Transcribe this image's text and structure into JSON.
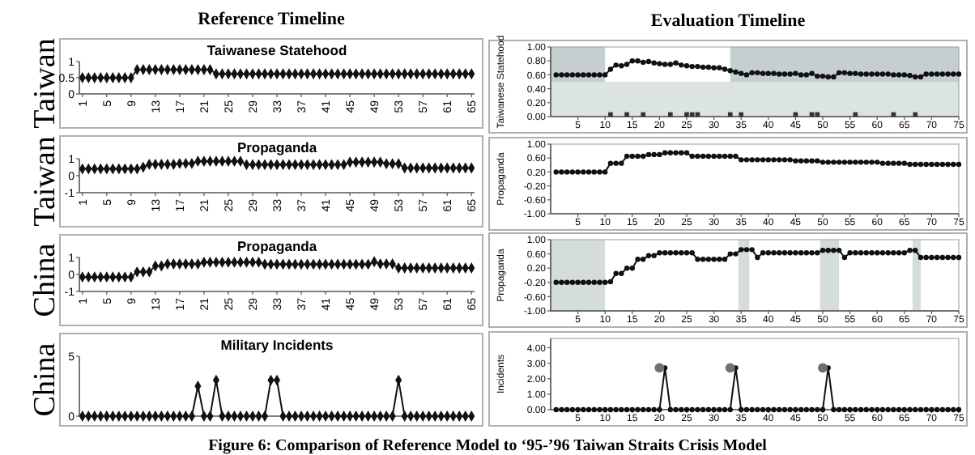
{
  "chart_data": [
    {
      "type": "line",
      "title": "Taiwanese Statehood",
      "ylabel": "Taiwan",
      "annotations": [
        "Reference Timeline"
      ],
      "marker": "diamond",
      "xlim": [
        0.5,
        65.5
      ],
      "xticks": [
        1,
        5,
        9,
        13,
        17,
        21,
        25,
        29,
        33,
        37,
        41,
        45,
        49,
        53,
        57,
        61,
        65
      ],
      "ylim": [
        0,
        1
      ],
      "yticks": [
        0,
        0.5,
        1
      ],
      "x": [
        1,
        2,
        3,
        4,
        5,
        6,
        7,
        8,
        9,
        10,
        11,
        12,
        13,
        14,
        15,
        16,
        17,
        18,
        19,
        20,
        21,
        22,
        23,
        24,
        25,
        26,
        27,
        28,
        29,
        30,
        31,
        32,
        33,
        34,
        35,
        36,
        37,
        38,
        39,
        40,
        41,
        42,
        43,
        44,
        45,
        46,
        47,
        48,
        49,
        50,
        51,
        52,
        53,
        54,
        55,
        56,
        57,
        58,
        59,
        60,
        61,
        62,
        63,
        64,
        65
      ],
      "series": [
        {
          "color": "#111111",
          "values": [
            0.5,
            0.5,
            0.5,
            0.5,
            0.5,
            0.5,
            0.5,
            0.5,
            0.5,
            0.75,
            0.75,
            0.75,
            0.75,
            0.75,
            0.75,
            0.75,
            0.75,
            0.75,
            0.75,
            0.75,
            0.75,
            0.75,
            0.62,
            0.62,
            0.62,
            0.62,
            0.62,
            0.62,
            0.62,
            0.62,
            0.62,
            0.62,
            0.62,
            0.62,
            0.62,
            0.62,
            0.62,
            0.62,
            0.62,
            0.62,
            0.62,
            0.62,
            0.62,
            0.62,
            0.62,
            0.62,
            0.62,
            0.62,
            0.62,
            0.62,
            0.62,
            0.62,
            0.62,
            0.62,
            0.62,
            0.62,
            0.62,
            0.62,
            0.62,
            0.62,
            0.62,
            0.62,
            0.62,
            0.62,
            0.62
          ]
        }
      ]
    },
    {
      "type": "line",
      "ylabel": "Taiwanese Statehood",
      "annotations": [
        "Evaluation Timeline"
      ],
      "marker": "circle",
      "xlim": [
        0,
        75
      ],
      "xticks": [
        5,
        10,
        15,
        20,
        25,
        30,
        35,
        40,
        45,
        50,
        55,
        60,
        65,
        70,
        75
      ],
      "ylim": [
        0,
        1
      ],
      "yticks": [
        {
          "value": 0,
          "label": "0.00"
        },
        {
          "value": 0.2,
          "label": "0.20"
        },
        {
          "value": 0.4,
          "label": "0.40"
        },
        {
          "value": 0.6,
          "label": "0.60"
        },
        {
          "value": 0.8,
          "label": "0.80"
        },
        {
          "value": 1,
          "label": "1.00"
        }
      ],
      "bands": [
        {
          "axis": "x",
          "from": 0,
          "to": 10,
          "color": "#c5cfcf"
        },
        {
          "axis": "x",
          "from": 33,
          "to": 75,
          "color": "#c5cfcf"
        },
        {
          "axis": "y",
          "from": 0,
          "to": 0.5,
          "color": "#dbe3e3"
        }
      ],
      "x": [
        1,
        2,
        3,
        4,
        5,
        6,
        7,
        8,
        9,
        10,
        11,
        12,
        13,
        14,
        15,
        16,
        17,
        18,
        19,
        20,
        21,
        22,
        23,
        24,
        25,
        26,
        27,
        28,
        29,
        30,
        31,
        32,
        33,
        34,
        35,
        36,
        37,
        38,
        39,
        40,
        41,
        42,
        43,
        44,
        45,
        46,
        47,
        48,
        49,
        50,
        51,
        52,
        53,
        54,
        55,
        56,
        57,
        58,
        59,
        60,
        61,
        62,
        63,
        64,
        65,
        66,
        67,
        68,
        69,
        70,
        71,
        72,
        73,
        74,
        75
      ],
      "series": [
        {
          "color": "#111111",
          "values": [
            0.6,
            0.6,
            0.6,
            0.6,
            0.6,
            0.6,
            0.6,
            0.6,
            0.6,
            0.6,
            0.68,
            0.74,
            0.73,
            0.75,
            0.8,
            0.8,
            0.78,
            0.79,
            0.77,
            0.76,
            0.75,
            0.75,
            0.77,
            0.74,
            0.73,
            0.72,
            0.72,
            0.71,
            0.71,
            0.7,
            0.7,
            0.68,
            0.66,
            0.64,
            0.62,
            0.6,
            0.63,
            0.63,
            0.62,
            0.62,
            0.62,
            0.61,
            0.61,
            0.61,
            0.62,
            0.6,
            0.6,
            0.62,
            0.58,
            0.58,
            0.57,
            0.57,
            0.63,
            0.63,
            0.62,
            0.62,
            0.61,
            0.61,
            0.61,
            0.61,
            0.61,
            0.61,
            0.6,
            0.6,
            0.6,
            0.59,
            0.57,
            0.57,
            0.61,
            0.61,
            0.61,
            0.61,
            0.61,
            0.61,
            0.61
          ]
        },
        {
          "type": "scatter",
          "marker": "square",
          "color": "#333333",
          "x": [
            11,
            14,
            17,
            22,
            25,
            26,
            27,
            33,
            35,
            45,
            48,
            49,
            56,
            63,
            67
          ],
          "values": [
            0.03,
            0.03,
            0.03,
            0.03,
            0.03,
            0.03,
            0.03,
            0.03,
            0.03,
            0.03,
            0.03,
            0.03,
            0.03,
            0.03,
            0.03
          ]
        }
      ]
    },
    {
      "type": "line",
      "title": "Propaganda",
      "ylabel": "Taiwan",
      "marker": "diamond",
      "xlim": [
        0.5,
        65.5
      ],
      "xticks": [
        1,
        5,
        9,
        13,
        17,
        21,
        25,
        29,
        33,
        37,
        41,
        45,
        49,
        53,
        57,
        61,
        65
      ],
      "ylim": [
        -1,
        1
      ],
      "yticks": [
        -1,
        0,
        1
      ],
      "x": [
        1,
        2,
        3,
        4,
        5,
        6,
        7,
        8,
        9,
        10,
        11,
        12,
        13,
        14,
        15,
        16,
        17,
        18,
        19,
        20,
        21,
        22,
        23,
        24,
        25,
        26,
        27,
        28,
        29,
        30,
        31,
        32,
        33,
        34,
        35,
        36,
        37,
        38,
        39,
        40,
        41,
        42,
        43,
        44,
        45,
        46,
        47,
        48,
        49,
        50,
        51,
        52,
        53,
        54,
        55,
        56,
        57,
        58,
        59,
        60,
        61,
        62,
        63,
        64,
        65
      ],
      "series": [
        {
          "color": "#111111",
          "values": [
            0.4,
            0.4,
            0.4,
            0.4,
            0.4,
            0.4,
            0.4,
            0.4,
            0.4,
            0.4,
            0.5,
            0.67,
            0.67,
            0.67,
            0.67,
            0.67,
            0.72,
            0.72,
            0.72,
            0.85,
            0.85,
            0.85,
            0.85,
            0.85,
            0.85,
            0.85,
            0.85,
            0.65,
            0.65,
            0.65,
            0.65,
            0.65,
            0.65,
            0.65,
            0.65,
            0.65,
            0.65,
            0.65,
            0.65,
            0.65,
            0.65,
            0.65,
            0.65,
            0.65,
            0.8,
            0.8,
            0.8,
            0.8,
            0.8,
            0.8,
            0.7,
            0.7,
            0.7,
            0.45,
            0.45,
            0.45,
            0.45,
            0.45,
            0.45,
            0.45,
            0.45,
            0.45,
            0.45,
            0.45,
            0.45
          ]
        }
      ]
    },
    {
      "type": "line",
      "ylabel": "Propaganda",
      "marker": "circle",
      "xlim": [
        0,
        75
      ],
      "xticks": [
        5,
        10,
        15,
        20,
        25,
        30,
        35,
        40,
        45,
        50,
        55,
        60,
        65,
        70,
        75
      ],
      "ylim": [
        -1,
        1
      ],
      "yticks": [
        {
          "value": -1,
          "label": "-1.00"
        },
        {
          "value": -0.6,
          "label": "-0.60"
        },
        {
          "value": -0.2,
          "label": "-0.20"
        },
        {
          "value": 0.2,
          "label": "0.20"
        },
        {
          "value": 0.6,
          "label": "0.60"
        },
        {
          "value": 1,
          "label": "1.00"
        }
      ],
      "x": [
        1,
        2,
        3,
        4,
        5,
        6,
        7,
        8,
        9,
        10,
        11,
        12,
        13,
        14,
        15,
        16,
        17,
        18,
        19,
        20,
        21,
        22,
        23,
        24,
        25,
        26,
        27,
        28,
        29,
        30,
        31,
        32,
        33,
        34,
        35,
        36,
        37,
        38,
        39,
        40,
        41,
        42,
        43,
        44,
        45,
        46,
        47,
        48,
        49,
        50,
        51,
        52,
        53,
        54,
        55,
        56,
        57,
        58,
        59,
        60,
        61,
        62,
        63,
        64,
        65,
        66,
        67,
        68,
        69,
        70,
        71,
        72,
        73,
        74,
        75
      ],
      "series": [
        {
          "color": "#111111",
          "values": [
            0.2,
            0.2,
            0.2,
            0.2,
            0.2,
            0.2,
            0.2,
            0.2,
            0.2,
            0.2,
            0.45,
            0.45,
            0.45,
            0.65,
            0.65,
            0.65,
            0.65,
            0.7,
            0.7,
            0.7,
            0.75,
            0.75,
            0.75,
            0.75,
            0.75,
            0.65,
            0.65,
            0.65,
            0.65,
            0.65,
            0.65,
            0.65,
            0.65,
            0.65,
            0.55,
            0.55,
            0.55,
            0.55,
            0.55,
            0.55,
            0.55,
            0.55,
            0.55,
            0.55,
            0.52,
            0.52,
            0.52,
            0.52,
            0.52,
            0.48,
            0.48,
            0.48,
            0.48,
            0.48,
            0.48,
            0.48,
            0.48,
            0.48,
            0.48,
            0.48,
            0.45,
            0.45,
            0.45,
            0.45,
            0.45,
            0.42,
            0.42,
            0.42,
            0.42,
            0.42,
            0.42,
            0.42,
            0.42,
            0.42,
            0.42
          ]
        }
      ]
    },
    {
      "type": "line",
      "title": "Propaganda",
      "ylabel": "China",
      "marker": "diamond",
      "xlim": [
        0.5,
        65.5
      ],
      "xticks": [
        1,
        5,
        9,
        13,
        17,
        21,
        25,
        29,
        33,
        37,
        41,
        45,
        49,
        53,
        57,
        61,
        65
      ],
      "ylim": [
        -1,
        1
      ],
      "yticks": [
        -1,
        0,
        1
      ],
      "x": [
        1,
        2,
        3,
        4,
        5,
        6,
        7,
        8,
        9,
        10,
        11,
        12,
        13,
        14,
        15,
        16,
        17,
        18,
        19,
        20,
        21,
        22,
        23,
        24,
        25,
        26,
        27,
        28,
        29,
        30,
        31,
        32,
        33,
        34,
        35,
        36,
        37,
        38,
        39,
        40,
        41,
        42,
        43,
        44,
        45,
        46,
        47,
        48,
        49,
        50,
        51,
        52,
        53,
        54,
        55,
        56,
        57,
        58,
        59,
        60,
        61,
        62,
        63,
        64,
        65
      ],
      "series": [
        {
          "color": "#111111",
          "values": [
            -0.15,
            -0.15,
            -0.15,
            -0.15,
            -0.15,
            -0.15,
            -0.15,
            -0.15,
            -0.15,
            0.15,
            0.15,
            0.15,
            0.5,
            0.5,
            0.62,
            0.62,
            0.62,
            0.62,
            0.62,
            0.62,
            0.72,
            0.72,
            0.72,
            0.72,
            0.72,
            0.72,
            0.72,
            0.72,
            0.72,
            0.72,
            0.6,
            0.6,
            0.6,
            0.6,
            0.6,
            0.6,
            0.6,
            0.6,
            0.6,
            0.6,
            0.6,
            0.6,
            0.6,
            0.6,
            0.6,
            0.6,
            0.6,
            0.6,
            0.75,
            0.62,
            0.62,
            0.62,
            0.38,
            0.38,
            0.38,
            0.38,
            0.38,
            0.38,
            0.38,
            0.38,
            0.38,
            0.38,
            0.38,
            0.38,
            0.38
          ]
        }
      ]
    },
    {
      "type": "line",
      "ylabel": "Propaganda",
      "marker": "circle",
      "xlim": [
        0,
        75
      ],
      "xticks": [
        5,
        10,
        15,
        20,
        25,
        30,
        35,
        40,
        45,
        50,
        55,
        60,
        65,
        70,
        75
      ],
      "ylim": [
        -1,
        1
      ],
      "yticks": [
        {
          "value": -1,
          "label": "-1.00"
        },
        {
          "value": -0.6,
          "label": "-0.60"
        },
        {
          "value": -0.2,
          "label": "-0.20"
        },
        {
          "value": 0.2,
          "label": "0.20"
        },
        {
          "value": 0.6,
          "label": "0.60"
        },
        {
          "value": 1,
          "label": "1.00"
        }
      ],
      "bands": [
        {
          "axis": "x",
          "from": 0,
          "to": 10,
          "color": "#d5dcdc"
        },
        {
          "axis": "x",
          "from": 34.5,
          "to": 36.5,
          "color": "#d5dcdc"
        },
        {
          "axis": "x",
          "from": 49.5,
          "to": 53,
          "color": "#d5dcdc"
        },
        {
          "axis": "x",
          "from": 66.5,
          "to": 68,
          "color": "#d5dcdc"
        }
      ],
      "x": [
        1,
        2,
        3,
        4,
        5,
        6,
        7,
        8,
        9,
        10,
        11,
        12,
        13,
        14,
        15,
        16,
        17,
        18,
        19,
        20,
        21,
        22,
        23,
        24,
        25,
        26,
        27,
        28,
        29,
        30,
        31,
        32,
        33,
        34,
        35,
        36,
        37,
        38,
        39,
        40,
        41,
        42,
        43,
        44,
        45,
        46,
        47,
        48,
        49,
        50,
        51,
        52,
        53,
        54,
        55,
        56,
        57,
        58,
        59,
        60,
        61,
        62,
        63,
        64,
        65,
        66,
        67,
        68,
        69,
        70,
        71,
        72,
        73,
        74,
        75
      ],
      "series": [
        {
          "color": "#111111",
          "values": [
            -0.2,
            -0.2,
            -0.2,
            -0.2,
            -0.2,
            -0.2,
            -0.2,
            -0.2,
            -0.2,
            -0.2,
            -0.18,
            0.05,
            0.05,
            0.2,
            0.2,
            0.45,
            0.45,
            0.55,
            0.55,
            0.63,
            0.63,
            0.63,
            0.63,
            0.63,
            0.63,
            0.63,
            0.45,
            0.45,
            0.45,
            0.45,
            0.45,
            0.45,
            0.6,
            0.6,
            0.72,
            0.72,
            0.72,
            0.5,
            0.63,
            0.63,
            0.63,
            0.63,
            0.63,
            0.63,
            0.63,
            0.63,
            0.63,
            0.63,
            0.63,
            0.7,
            0.7,
            0.7,
            0.7,
            0.5,
            0.63,
            0.63,
            0.63,
            0.63,
            0.63,
            0.63,
            0.63,
            0.63,
            0.63,
            0.63,
            0.63,
            0.7,
            0.7,
            0.5,
            0.5,
            0.5,
            0.5,
            0.5,
            0.5,
            0.5,
            0.5
          ]
        }
      ]
    },
    {
      "type": "line",
      "title": "Military Incidents",
      "ylabel": "China",
      "marker": "diamond",
      "tick_labels": "y",
      "xlim": [
        0.5,
        65.5
      ],
      "ylim": [
        0,
        5
      ],
      "yticks": [
        0,
        5
      ],
      "x": [
        1,
        2,
        3,
        4,
        5,
        6,
        7,
        8,
        9,
        10,
        11,
        12,
        13,
        14,
        15,
        16,
        17,
        18,
        19,
        20,
        21,
        22,
        23,
        24,
        25,
        26,
        27,
        28,
        29,
        30,
        31,
        32,
        33,
        34,
        35,
        36,
        37,
        38,
        39,
        40,
        41,
        42,
        43,
        44,
        45,
        46,
        47,
        48,
        49,
        50,
        51,
        52,
        53,
        54,
        55,
        56,
        57,
        58,
        59,
        60,
        61,
        62,
        63,
        64,
        65
      ],
      "series": [
        {
          "color": "#111111",
          "values": [
            0,
            0,
            0,
            0,
            0,
            0,
            0,
            0,
            0,
            0,
            0,
            0,
            0,
            0,
            0,
            0,
            0,
            0,
            0,
            2.5,
            0,
            0,
            3,
            0,
            0,
            0,
            0,
            0,
            0,
            0,
            0,
            3,
            3,
            0,
            0,
            0,
            0,
            0,
            0,
            0,
            0,
            0,
            0,
            0,
            0,
            0,
            0,
            0,
            0,
            0,
            0,
            0,
            3,
            0,
            0,
            0,
            0,
            0,
            0,
            0,
            0,
            0,
            0,
            0,
            0
          ]
        }
      ]
    },
    {
      "type": "line",
      "ylabel": "Incidents",
      "annotations": [
        "Figure 6: Comparison of Reference Model to ‘95-’96 Taiwan Straits Crisis Model"
      ],
      "marker": "circle",
      "xlim": [
        0,
        75
      ],
      "xticks": [
        5,
        10,
        15,
        20,
        25,
        30,
        35,
        40,
        45,
        50,
        55,
        60,
        65,
        70,
        75
      ],
      "ylim": [
        0,
        4.6
      ],
      "yticks": [
        {
          "value": 0,
          "label": "0.00"
        },
        {
          "value": 1,
          "label": "1.00"
        },
        {
          "value": 2,
          "label": "2.00"
        },
        {
          "value": 3,
          "label": "3.00"
        },
        {
          "value": 4,
          "label": "4.00"
        }
      ],
      "x": [
        1,
        2,
        3,
        4,
        5,
        6,
        7,
        8,
        9,
        10,
        11,
        12,
        13,
        14,
        15,
        16,
        17,
        18,
        19,
        20,
        21,
        22,
        23,
        24,
        25,
        26,
        27,
        28,
        29,
        30,
        31,
        32,
        33,
        34,
        35,
        36,
        37,
        38,
        39,
        40,
        41,
        42,
        43,
        44,
        45,
        46,
        47,
        48,
        49,
        50,
        51,
        52,
        53,
        54,
        55,
        56,
        57,
        58,
        59,
        60,
        61,
        62,
        63,
        64,
        65,
        66,
        67,
        68,
        69,
        70,
        71,
        72,
        73,
        74,
        75
      ],
      "series": [
        {
          "color": "#111111",
          "values": [
            0,
            0,
            0,
            0,
            0,
            0,
            0,
            0,
            0,
            0,
            0,
            0,
            0,
            0,
            0,
            0,
            0,
            0,
            0,
            0,
            2.7,
            0,
            0,
            0,
            0,
            0,
            0,
            0,
            0,
            0,
            0,
            0,
            0,
            2.7,
            0,
            0,
            0,
            0,
            0,
            0,
            0,
            0,
            0,
            0,
            0,
            0,
            0,
            0,
            0,
            0,
            2.7,
            0,
            0,
            0,
            0,
            0,
            0,
            0,
            0,
            0,
            0,
            0,
            0,
            0,
            0,
            0,
            0,
            0,
            0,
            0,
            0,
            0,
            0,
            0,
            0
          ]
        },
        {
          "type": "scatter",
          "color": "#707070",
          "x": [
            20,
            33,
            50
          ],
          "values": [
            2.7,
            2.7,
            2.7
          ]
        }
      ]
    }
  ]
}
